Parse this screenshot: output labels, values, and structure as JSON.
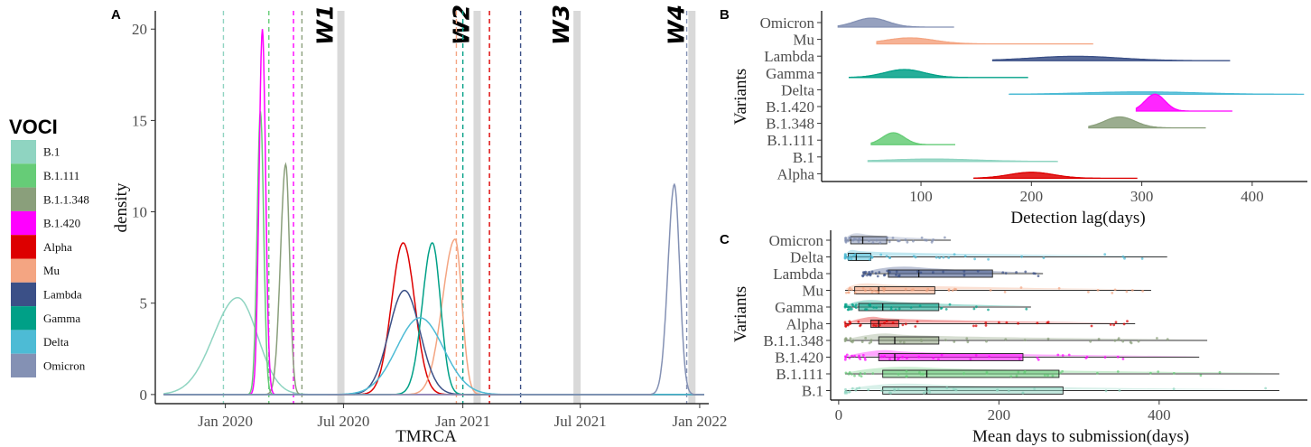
{
  "legend": {
    "title": "VOCI",
    "items": [
      {
        "label": "B.1",
        "color": "#8fd4c1"
      },
      {
        "label": "B.1.111",
        "color": "#66cc77"
      },
      {
        "label": "B.1.1.348",
        "color": "#8a9f7b"
      },
      {
        "label": "B.1.420",
        "color": "#ff00ff"
      },
      {
        "label": "Alpha",
        "color": "#dd0000"
      },
      {
        "label": "Mu",
        "color": "#f4a582"
      },
      {
        "label": "Lambda",
        "color": "#3b5087"
      },
      {
        "label": "Gamma",
        "color": "#00a087"
      },
      {
        "label": "Delta",
        "color": "#4dbbd5"
      },
      {
        "label": "Omicron",
        "color": "#8491b4"
      }
    ]
  },
  "chart_data": [
    {
      "panel": "A",
      "type": "line",
      "xlabel": "TMRCA",
      "ylabel": "density",
      "x_range": [
        "2019-09-15",
        "2022-01-15"
      ],
      "ylim": [
        -0.5,
        21
      ],
      "x_ticks": [
        {
          "date": "2020-01-01",
          "label": "Jan 2020"
        },
        {
          "date": "2020-07-01",
          "label": "Jul 2020"
        },
        {
          "date": "2021-01-01",
          "label": "Jan 2021"
        },
        {
          "date": "2021-07-01",
          "label": "Jul 2021"
        },
        {
          "date": "2022-01-01",
          "label": "Jan 2022"
        }
      ],
      "y_ticks": [
        0,
        5,
        10,
        15,
        20
      ],
      "waves": [
        {
          "label": "W1",
          "date": "2020-06-27"
        },
        {
          "label": "W2",
          "date": "2021-01-23"
        },
        {
          "label": "W3",
          "date": "2021-06-26"
        },
        {
          "label": "W4",
          "date": "2021-12-20"
        }
      ],
      "series": [
        {
          "name": "B.1",
          "color": "#8fd4c1",
          "mu": "2020-01-20",
          "sd": 34,
          "peak": 5.3,
          "skew": -0.2
        },
        {
          "name": "B.1.111",
          "color": "#66cc77",
          "mu": "2020-02-24",
          "sd": 5,
          "peak": 15.5,
          "skew": 0
        },
        {
          "name": "B.1.1.348",
          "color": "#8a9f7b",
          "mu": "2020-04-03",
          "sd": 7,
          "peak": 12.6,
          "skew": -0.3
        },
        {
          "name": "B.1.420",
          "color": "#ff00ff",
          "mu": "2020-02-27",
          "sd": 5,
          "peak": 20,
          "skew": 0
        },
        {
          "name": "Alpha",
          "color": "#dd0000",
          "mu": "2020-10-01",
          "sd": 18,
          "peak": 8.3,
          "skew": 0
        },
        {
          "name": "Mu",
          "color": "#f4a582",
          "mu": "2020-12-20",
          "sd": 15,
          "peak": 8.5,
          "skew": -0.6
        },
        {
          "name": "Lambda",
          "color": "#3b5087",
          "mu": "2020-10-03",
          "sd": 24,
          "peak": 5.7,
          "skew": 0
        },
        {
          "name": "Gamma",
          "color": "#00a087",
          "mu": "2020-11-15",
          "sd": 14,
          "peak": 8.3,
          "skew": -0.2
        },
        {
          "name": "Delta",
          "color": "#4dbbd5",
          "mu": "2020-10-27",
          "sd": 36,
          "peak": 4.2,
          "skew": 0
        },
        {
          "name": "Omicron",
          "color": "#8491b4",
          "mu": "2021-11-23",
          "sd": 9,
          "peak": 11.5,
          "skew": -0.2
        }
      ],
      "vlines": [
        {
          "date": "2019-12-29",
          "color": "#8fd4c1"
        },
        {
          "date": "2020-03-08",
          "color": "#66cc77"
        },
        {
          "date": "2020-04-28",
          "color": "#8a9f7b"
        },
        {
          "date": "2020-04-15",
          "color": "#ff00ff"
        },
        {
          "date": "2020-12-22",
          "color": "#f4a582"
        },
        {
          "date": "2021-01-01",
          "color": "#00a087"
        },
        {
          "date": "2021-02-11",
          "color": "#dd0000"
        },
        {
          "date": "2021-03-31",
          "color": "#3b5087"
        },
        {
          "date": "2021-12-12",
          "color": "#8491b4"
        }
      ]
    },
    {
      "panel": "B",
      "type": "ridgeline",
      "xlabel": "Detection lag(days)",
      "ylabel": "Variants",
      "xlim": [
        10,
        450
      ],
      "x_ticks": [
        100,
        200,
        300,
        400
      ],
      "categories": [
        "Omicron",
        "Mu",
        "Lambda",
        "Gamma",
        "Delta",
        "B.1.420",
        "B.1.348",
        "B.1.111",
        "B.1",
        "Alpha"
      ],
      "ridges": [
        {
          "name": "Omicron",
          "color": "#8491b4",
          "min": 25,
          "max": 130,
          "mode": 55,
          "sd": 15,
          "h": 0.45
        },
        {
          "name": "Mu",
          "color": "#f4a582",
          "min": 60,
          "max": 256,
          "mode": 90,
          "sd": 22,
          "h": 0.3
        },
        {
          "name": "Lambda",
          "color": "#3b5087",
          "min": 165,
          "max": 380,
          "mode": 240,
          "sd": 40,
          "h": 0.22
        },
        {
          "name": "Gamma",
          "color": "#00a087",
          "min": 35,
          "max": 197,
          "mode": 85,
          "sd": 18,
          "h": 0.4
        },
        {
          "name": "Delta",
          "color": "#4dbbd5",
          "min": 180,
          "max": 447,
          "mode": 300,
          "sd": 50,
          "h": 0.12
        },
        {
          "name": "B.1.420",
          "color": "#ff00ff",
          "min": 295,
          "max": 382,
          "mode": 312,
          "sd": 9,
          "h": 0.85
        },
        {
          "name": "B.1.348",
          "color": "#8a9f7b",
          "min": 252,
          "max": 358,
          "mode": 280,
          "sd": 14,
          "h": 0.55
        },
        {
          "name": "B.1.111",
          "color": "#66cc77",
          "min": 55,
          "max": 131,
          "mode": 75,
          "sd": 10,
          "h": 0.6
        },
        {
          "name": "B.1",
          "color": "#8fd4c1",
          "min": 52,
          "max": 224,
          "mode": 110,
          "sd": 40,
          "h": 0.12
        },
        {
          "name": "Alpha",
          "color": "#dd0000",
          "min": 148,
          "max": 296,
          "mode": 200,
          "sd": 20,
          "h": 0.3
        }
      ]
    },
    {
      "panel": "C",
      "type": "box",
      "xlabel": "Mean days to submission(days)",
      "ylabel": "Variants",
      "xlim": [
        -10,
        585
      ],
      "x_ticks": [
        0,
        200,
        400
      ],
      "categories": [
        "Omicron",
        "Delta",
        "Lambda",
        "Mu",
        "Gamma",
        "Alpha",
        "B.1.1.348",
        "B.1.420",
        "B.1.111",
        "B.1"
      ],
      "boxes": [
        {
          "name": "Omicron",
          "color": "#8491b4",
          "min": 8,
          "q1": 15,
          "median": 30,
          "q3": 60,
          "max": 140
        },
        {
          "name": "Delta",
          "color": "#4dbbd5",
          "min": 8,
          "q1": 12,
          "median": 22,
          "q3": 40,
          "max": 410
        },
        {
          "name": "Lambda",
          "color": "#3b5087",
          "min": 30,
          "q1": 62,
          "median": 100,
          "q3": 192,
          "max": 255
        },
        {
          "name": "Mu",
          "color": "#f4a582",
          "min": 8,
          "q1": 20,
          "median": 50,
          "q3": 120,
          "max": 390
        },
        {
          "name": "Gamma",
          "color": "#00a087",
          "min": 8,
          "q1": 25,
          "median": 55,
          "q3": 125,
          "max": 240
        },
        {
          "name": "Alpha",
          "color": "#dd0000",
          "min": 8,
          "q1": 40,
          "median": 50,
          "q3": 75,
          "max": 370
        },
        {
          "name": "B.1.1.348",
          "color": "#8a9f7b",
          "min": 8,
          "q1": 50,
          "median": 70,
          "q3": 125,
          "max": 460
        },
        {
          "name": "B.1.420",
          "color": "#ff00ff",
          "min": 8,
          "q1": 50,
          "median": 70,
          "q3": 230,
          "max": 450
        },
        {
          "name": "B.1.111",
          "color": "#66cc77",
          "min": 8,
          "q1": 55,
          "median": 110,
          "q3": 275,
          "max": 550
        },
        {
          "name": "B.1",
          "color": "#8fd4c1",
          "min": 8,
          "q1": 55,
          "median": 110,
          "q3": 280,
          "max": 550
        }
      ]
    }
  ]
}
